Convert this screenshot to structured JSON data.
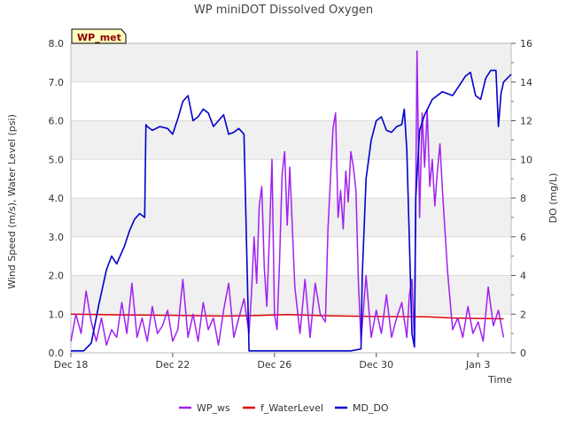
{
  "chart_data": {
    "type": "line",
    "title": "WP miniDOT Dissolved Oxygen",
    "badge": "WP_met",
    "xlabel": "Time",
    "ylabel_left": "Wind Speed (m/s), Water Level (psi)",
    "ylabel_right": "DO (mg/L)",
    "x_start": "2024-12-18",
    "x_end": "2025-01-04",
    "xlim": [
      0,
      17.3
    ],
    "ylim_left": [
      0,
      8
    ],
    "ylim_right": [
      0,
      16
    ],
    "x_ticks": [
      {
        "x": 0,
        "label": "Dec 18"
      },
      {
        "x": 4,
        "label": "Dec 22"
      },
      {
        "x": 8,
        "label": "Dec 26"
      },
      {
        "x": 12,
        "label": "Dec 30"
      },
      {
        "x": 16,
        "label": "Jan 3"
      }
    ],
    "y_ticks_left": [
      "0.0",
      "1.0",
      "2.0",
      "3.0",
      "4.0",
      "5.0",
      "6.0",
      "7.0",
      "8.0"
    ],
    "y_ticks_right": [
      "0",
      "2",
      "4",
      "6",
      "8",
      "10",
      "12",
      "14",
      "16"
    ],
    "grid": true,
    "legend_position": "bottom",
    "colors": {
      "band": "#f0f0f0",
      "grid": "#dcdcdc",
      "axis": "#bbbbbb",
      "badge_bg": "#ffffc0",
      "badge_text": "#8b0000"
    },
    "series": [
      {
        "name": "WP_ws",
        "axis": "left",
        "color": "#a020f0",
        "x": [
          0.0,
          0.2,
          0.4,
          0.6,
          0.8,
          1.0,
          1.2,
          1.4,
          1.6,
          1.8,
          2.0,
          2.2,
          2.4,
          2.6,
          2.8,
          3.0,
          3.2,
          3.4,
          3.6,
          3.8,
          4.0,
          4.2,
          4.4,
          4.6,
          4.8,
          5.0,
          5.2,
          5.4,
          5.6,
          5.8,
          6.0,
          6.2,
          6.4,
          6.6,
          6.8,
          7.0,
          7.1,
          7.2,
          7.3,
          7.4,
          7.5,
          7.6,
          7.7,
          7.8,
          7.9,
          8.0,
          8.1,
          8.2,
          8.3,
          8.4,
          8.5,
          8.6,
          8.8,
          9.0,
          9.2,
          9.4,
          9.6,
          9.8,
          10.0,
          10.1,
          10.2,
          10.3,
          10.4,
          10.5,
          10.6,
          10.7,
          10.8,
          10.9,
          11.0,
          11.1,
          11.2,
          11.3,
          11.4,
          11.6,
          11.8,
          12.0,
          12.2,
          12.4,
          12.6,
          12.8,
          13.0,
          13.2,
          13.3,
          13.4,
          13.5,
          13.6,
          13.7,
          13.8,
          13.9,
          14.0,
          14.1,
          14.2,
          14.3,
          14.4,
          14.5,
          14.6,
          14.8,
          15.0,
          15.2,
          15.4,
          15.6,
          15.8,
          16.0,
          16.2,
          16.4,
          16.6,
          16.8,
          17.0
        ],
        "y": [
          0.3,
          1.0,
          0.5,
          1.6,
          0.8,
          0.3,
          0.9,
          0.2,
          0.6,
          0.4,
          1.3,
          0.5,
          1.8,
          0.4,
          0.9,
          0.3,
          1.2,
          0.5,
          0.7,
          1.1,
          0.3,
          0.6,
          1.9,
          0.4,
          1.0,
          0.3,
          1.3,
          0.6,
          0.9,
          0.2,
          1.1,
          1.8,
          0.4,
          0.9,
          1.4,
          0.5,
          1.6,
          3.0,
          1.8,
          3.8,
          4.3,
          2.2,
          1.2,
          3.0,
          5.0,
          1.0,
          0.6,
          2.4,
          4.6,
          5.2,
          3.3,
          4.8,
          1.7,
          0.5,
          1.9,
          0.4,
          1.8,
          1.0,
          0.8,
          3.2,
          4.5,
          5.8,
          6.2,
          3.5,
          4.2,
          3.2,
          4.7,
          3.9,
          5.2,
          4.8,
          4.2,
          1.8,
          0.3,
          2.0,
          0.4,
          1.1,
          0.5,
          1.5,
          0.4,
          0.9,
          1.3,
          0.4,
          1.5,
          1.9,
          0.3,
          7.8,
          3.5,
          6.2,
          4.8,
          6.3,
          4.3,
          5.0,
          3.8,
          4.7,
          5.4,
          4.2,
          2.1,
          0.6,
          0.9,
          0.4,
          1.2,
          0.5,
          0.8,
          0.3,
          1.7,
          0.7,
          1.1,
          0.4
        ]
      },
      {
        "name": "f_WaterLevel",
        "axis": "left",
        "color": "#dd0000",
        "x": [
          0.0,
          2.0,
          4.0,
          6.0,
          7.5,
          8.5,
          10.0,
          12.0,
          14.0,
          15.0,
          16.0,
          17.0
        ],
        "y": [
          1.0,
          0.98,
          0.97,
          0.95,
          0.97,
          0.99,
          0.96,
          0.94,
          0.93,
          0.9,
          0.89,
          0.88
        ]
      },
      {
        "name": "MD_DO",
        "axis": "right",
        "color": "#0000cc",
        "x": [
          0.0,
          0.5,
          0.8,
          1.1,
          1.4,
          1.6,
          1.8,
          2.1,
          2.3,
          2.5,
          2.7,
          2.9,
          2.95,
          3.0,
          3.2,
          3.5,
          3.8,
          4.0,
          4.2,
          4.4,
          4.6,
          4.8,
          5.0,
          5.2,
          5.4,
          5.6,
          5.8,
          6.0,
          6.2,
          6.4,
          6.6,
          6.8,
          7.0,
          7.2,
          7.4,
          7.6,
          7.8,
          7.9,
          8.0,
          8.1,
          8.2,
          9.0,
          10.0,
          11.0,
          11.4,
          11.45,
          11.6,
          11.8,
          12.0,
          12.2,
          12.4,
          12.6,
          12.8,
          13.0,
          13.1,
          13.2,
          13.4,
          13.5,
          13.55,
          13.7,
          13.9,
          14.2,
          14.6,
          15.0,
          15.2,
          15.5,
          15.7,
          15.9,
          16.1,
          16.3,
          16.5,
          16.7,
          16.8,
          16.9,
          17.0,
          17.3
        ],
        "y": [
          0.1,
          0.1,
          0.5,
          2.5,
          4.3,
          5.0,
          4.6,
          5.5,
          6.3,
          6.9,
          7.2,
          7.0,
          11.8,
          11.7,
          11.5,
          11.7,
          11.6,
          11.3,
          12.1,
          13.0,
          13.3,
          12.0,
          12.2,
          12.6,
          12.4,
          11.7,
          12.0,
          12.3,
          11.3,
          11.4,
          11.6,
          11.3,
          0.1,
          0.1,
          0.1,
          0.1,
          0.1,
          0.1,
          0.1,
          0.1,
          0.1,
          0.1,
          0.1,
          0.1,
          0.2,
          4.0,
          9.0,
          11.0,
          12.0,
          12.2,
          11.5,
          11.4,
          11.7,
          11.8,
          12.6,
          10.5,
          1.0,
          0.3,
          8.0,
          11.5,
          12.3,
          13.1,
          13.5,
          13.3,
          13.7,
          14.3,
          14.5,
          13.3,
          13.1,
          14.2,
          14.6,
          14.6,
          11.7,
          13.4,
          14.0,
          14.4
        ]
      }
    ]
  }
}
